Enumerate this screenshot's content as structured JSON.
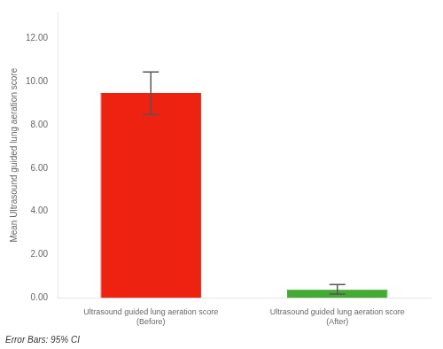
{
  "chart_data": {
    "type": "bar",
    "categories": [
      "Ultrasound guided lung aeration score\n(Before)",
      "Ultrasound guided lung aeration score\n(After)"
    ],
    "values": [
      9.47,
      0.4
    ],
    "error_lower": [
      8.48,
      0.18
    ],
    "error_upper": [
      10.45,
      0.62
    ],
    "colors": [
      "#ee2211",
      "#44aa33"
    ],
    "ylabel": "Mean Ultrasound guided lung aeration score",
    "ylim": [
      0,
      13.2
    ],
    "yticks": [
      {
        "value": 0,
        "label": "0.00"
      },
      {
        "value": 2,
        "label": "2.00"
      },
      {
        "value": 4,
        "label": "4.00"
      },
      {
        "value": 6,
        "label": "6.00"
      },
      {
        "value": 8,
        "label": "8.00"
      },
      {
        "value": 10,
        "label": "10.00"
      },
      {
        "value": 12,
        "label": "12.00"
      }
    ],
    "footer": "Error Bars: 95% CI",
    "grid": false
  }
}
